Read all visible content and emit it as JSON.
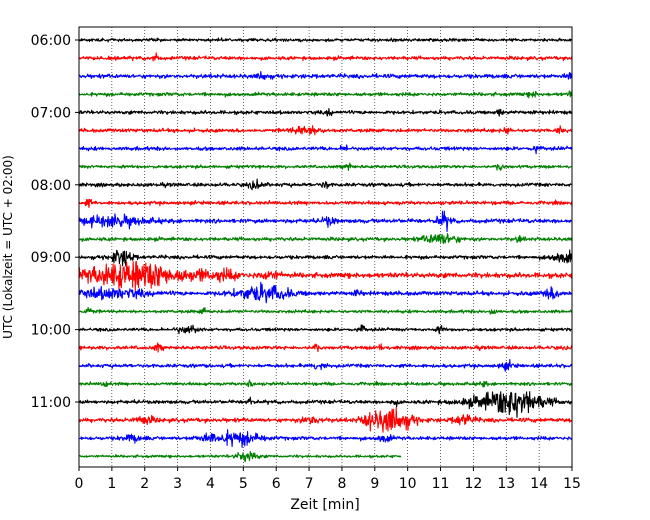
{
  "chart_data": {
    "type": "line",
    "title": "",
    "xlabel": "Zeit  [min]",
    "ylabel": "UTC (Lokalzeit = UTC + 02:00)",
    "xlim": [
      0,
      15
    ],
    "x_ticks": [
      "0",
      "1",
      "2",
      "3",
      "4",
      "5",
      "6",
      "7",
      "8",
      "9",
      "10",
      "11",
      "12",
      "13",
      "14",
      "15"
    ],
    "y_ticks": [
      "06:00",
      "07:00",
      "08:00",
      "09:00",
      "10:00",
      "11:00"
    ],
    "grid": {
      "vertical": true,
      "style": "dotted"
    },
    "trace_colors": [
      "#000000",
      "#ff0000",
      "#0000ff",
      "#008000"
    ],
    "trace_start": "06:00",
    "trace_interval_min": 15,
    "last_trace_end_min": 9.8,
    "traces": [
      {
        "start": "06:00",
        "amp": 0.6,
        "events": []
      },
      {
        "start": "06:15",
        "amp": 0.7,
        "events": [
          {
            "t": 2.3,
            "amp": 1.6,
            "dur": 0.1
          }
        ]
      },
      {
        "start": "06:30",
        "amp": 0.8,
        "events": [
          {
            "t": 5.6,
            "amp": 1.6,
            "dur": 0.15
          },
          {
            "t": 14.9,
            "amp": 1.4,
            "dur": 0.1
          }
        ]
      },
      {
        "start": "06:45",
        "amp": 0.7,
        "events": [
          {
            "t": 13.8,
            "amp": 1.5,
            "dur": 0.1
          },
          {
            "t": 15.0,
            "amp": 1.6,
            "dur": 0.1
          }
        ]
      },
      {
        "start": "07:00",
        "amp": 0.7,
        "events": [
          {
            "t": 7.6,
            "amp": 1.6,
            "dur": 0.1
          },
          {
            "t": 12.8,
            "amp": 1.3,
            "dur": 0.1
          }
        ]
      },
      {
        "start": "07:15",
        "amp": 0.7,
        "events": [
          {
            "t": 6.9,
            "amp": 1.8,
            "dur": 0.4
          },
          {
            "t": 13.0,
            "amp": 1.5,
            "dur": 0.1
          },
          {
            "t": 14.6,
            "amp": 1.6,
            "dur": 0.1
          }
        ]
      },
      {
        "start": "07:30",
        "amp": 0.7,
        "events": [
          {
            "t": 8.1,
            "amp": 1.7,
            "dur": 0.1
          },
          {
            "t": 13.9,
            "amp": 1.5,
            "dur": 0.1
          }
        ]
      },
      {
        "start": "07:45",
        "amp": 0.6,
        "events": [
          {
            "t": 8.2,
            "amp": 1.5,
            "dur": 0.1
          },
          {
            "t": 12.8,
            "amp": 1.4,
            "dur": 0.1
          }
        ]
      },
      {
        "start": "08:00",
        "amp": 0.7,
        "events": [
          {
            "t": 5.4,
            "amp": 1.6,
            "dur": 0.2
          },
          {
            "t": 7.5,
            "amp": 1.5,
            "dur": 0.1
          }
        ]
      },
      {
        "start": "08:15",
        "amp": 0.7,
        "events": [
          {
            "t": 0.3,
            "amp": 1.4,
            "dur": 0.1
          }
        ]
      },
      {
        "start": "08:30",
        "amp": 0.8,
        "events": [
          {
            "t": 1.0,
            "amp": 2.0,
            "dur": 1.0
          },
          {
            "t": 7.6,
            "amp": 1.6,
            "dur": 0.2
          },
          {
            "t": 11.1,
            "amp": 3.2,
            "dur": 0.2
          }
        ]
      },
      {
        "start": "08:45",
        "amp": 0.7,
        "events": [
          {
            "t": 11.0,
            "amp": 2.2,
            "dur": 0.5
          },
          {
            "t": 13.4,
            "amp": 1.3,
            "dur": 0.1
          }
        ]
      },
      {
        "start": "09:00",
        "amp": 0.7,
        "events": [
          {
            "t": 1.3,
            "amp": 3.5,
            "dur": 0.3
          },
          {
            "t": 14.8,
            "amp": 2.2,
            "dur": 0.4
          }
        ]
      },
      {
        "start": "09:15",
        "amp": 1.0,
        "events": [
          {
            "t": 1.4,
            "amp": 5.0,
            "dur": 1.3
          },
          {
            "t": 2.4,
            "amp": 1.8,
            "dur": 0.8
          },
          {
            "t": 3.8,
            "amp": 1.6,
            "dur": 0.5
          },
          {
            "t": 4.5,
            "amp": 1.5,
            "dur": 0.4
          },
          {
            "t": 5.8,
            "amp": 1.7,
            "dur": 0.3
          }
        ]
      },
      {
        "start": "09:30",
        "amp": 0.8,
        "events": [
          {
            "t": 0.9,
            "amp": 2.0,
            "dur": 1.2
          },
          {
            "t": 5.6,
            "amp": 3.2,
            "dur": 0.8
          },
          {
            "t": 8.5,
            "amp": 1.4,
            "dur": 0.1
          },
          {
            "t": 14.4,
            "amp": 2.0,
            "dur": 0.3
          }
        ]
      },
      {
        "start": "09:45",
        "amp": 0.6,
        "events": [
          {
            "t": 0.3,
            "amp": 1.8,
            "dur": 0.1
          },
          {
            "t": 3.8,
            "amp": 1.4,
            "dur": 0.1
          },
          {
            "t": 12.6,
            "amp": 1.4,
            "dur": 0.1
          }
        ]
      },
      {
        "start": "10:00",
        "amp": 0.6,
        "events": [
          {
            "t": 3.3,
            "amp": 1.6,
            "dur": 0.3
          },
          {
            "t": 8.6,
            "amp": 1.6,
            "dur": 0.1
          },
          {
            "t": 11.0,
            "amp": 1.4,
            "dur": 0.1
          }
        ]
      },
      {
        "start": "10:15",
        "amp": 0.7,
        "events": [
          {
            "t": 2.4,
            "amp": 1.6,
            "dur": 0.1
          },
          {
            "t": 7.2,
            "amp": 1.4,
            "dur": 0.1
          },
          {
            "t": 9.2,
            "amp": 1.3,
            "dur": 0.1
          }
        ]
      },
      {
        "start": "10:30",
        "amp": 0.7,
        "events": [
          {
            "t": 7.3,
            "amp": 1.4,
            "dur": 0.2
          },
          {
            "t": 13.0,
            "amp": 1.4,
            "dur": 0.2
          }
        ]
      },
      {
        "start": "10:45",
        "amp": 0.6,
        "events": [
          {
            "t": 0.8,
            "amp": 1.4,
            "dur": 0.1
          },
          {
            "t": 5.2,
            "amp": 1.3,
            "dur": 0.1
          },
          {
            "t": 12.3,
            "amp": 1.2,
            "dur": 0.1
          }
        ]
      },
      {
        "start": "11:00",
        "amp": 0.7,
        "events": [
          {
            "t": 13.0,
            "amp": 3.8,
            "dur": 1.1
          },
          {
            "t": 13.4,
            "amp": 2.8,
            "dur": 0.6
          },
          {
            "t": 5.2,
            "amp": 1.4,
            "dur": 0.1
          },
          {
            "t": 9.6,
            "amp": 1.4,
            "dur": 0.1
          }
        ]
      },
      {
        "start": "11:15",
        "amp": 0.8,
        "events": [
          {
            "t": 9.5,
            "amp": 5.0,
            "dur": 0.6
          },
          {
            "t": 8.8,
            "amp": 1.8,
            "dur": 0.2
          },
          {
            "t": 7.1,
            "amp": 1.6,
            "dur": 0.3
          },
          {
            "t": 11.7,
            "amp": 2.2,
            "dur": 0.3
          },
          {
            "t": 2.0,
            "amp": 1.4,
            "dur": 0.3
          }
        ]
      },
      {
        "start": "11:30",
        "amp": 0.7,
        "events": [
          {
            "t": 4.9,
            "amp": 2.8,
            "dur": 0.6
          },
          {
            "t": 4.0,
            "amp": 1.5,
            "dur": 0.4
          },
          {
            "t": 9.3,
            "amp": 1.5,
            "dur": 0.2
          },
          {
            "t": 1.6,
            "amp": 1.3,
            "dur": 0.3
          }
        ]
      },
      {
        "start": "11:45",
        "amp": 0.5,
        "events": [
          {
            "t": 5.1,
            "amp": 2.4,
            "dur": 0.3
          }
        ]
      }
    ]
  }
}
